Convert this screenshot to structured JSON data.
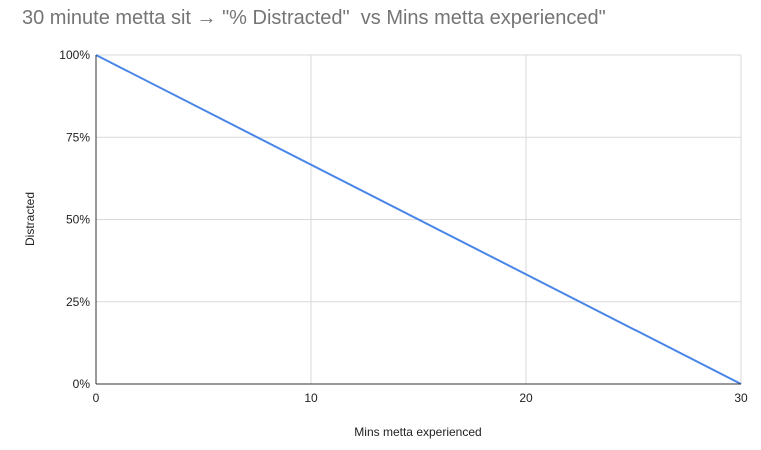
{
  "chart_data": {
    "type": "line",
    "title": "30 minute metta sit → \"% Distracted\"  vs Mins metta experienced\"",
    "xlabel": "Mins metta experienced",
    "ylabel": "Distracted",
    "xlim": [
      0,
      30
    ],
    "ylim": [
      0,
      100
    ],
    "x_ticks": [
      0,
      10,
      20,
      30
    ],
    "x_tick_labels": [
      "0",
      "10",
      "20",
      "30"
    ],
    "y_ticks": [
      0,
      25,
      50,
      75,
      100
    ],
    "y_tick_labels": [
      "0%",
      "25%",
      "50%",
      "75%",
      "100%"
    ],
    "grid": true,
    "series": [
      {
        "x": [
          0,
          30
        ],
        "y": [
          100,
          0
        ],
        "color": "#4a86e8"
      }
    ]
  }
}
